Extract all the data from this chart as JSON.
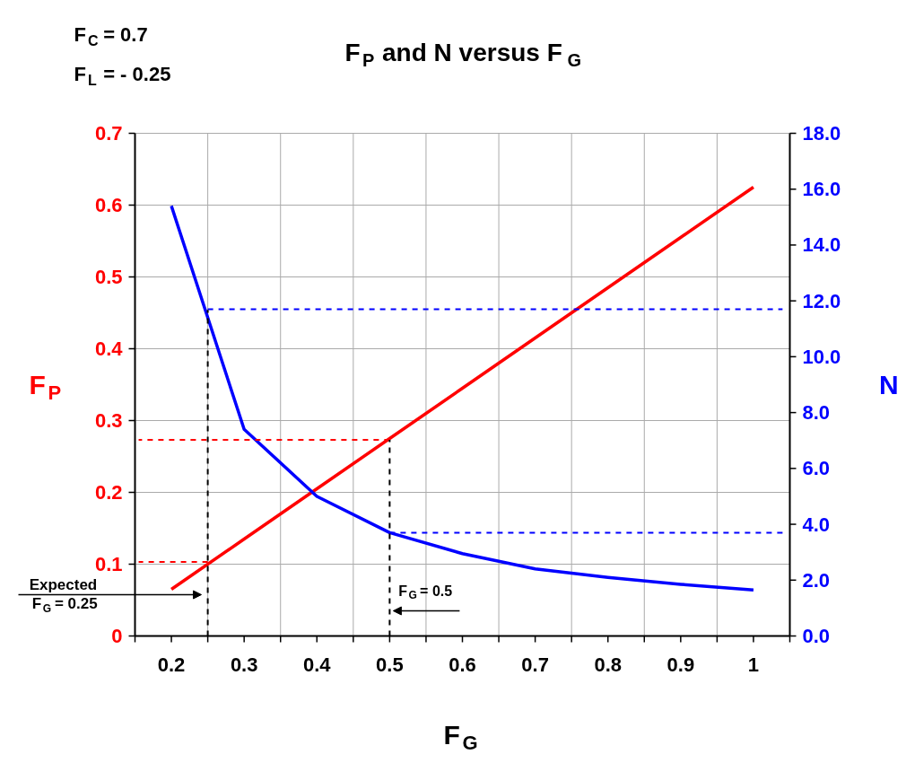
{
  "chart_data": {
    "type": "line",
    "title": "F$_{P}$ and N versus F$_{G}$",
    "xlabel": "F$_{G}$",
    "ylabel": "F$_{P}$",
    "y2label": "N",
    "x": [
      0.2,
      0.3,
      0.4,
      0.5,
      0.6,
      0.7,
      0.8,
      0.9,
      1
    ],
    "series": [
      {
        "color": "#ff0000",
        "values": [
          0.065,
          0.135,
          0.205,
          0.275,
          0.345,
          0.415,
          0.485,
          0.555,
          0.625
        ]
      },
      {
        "color": "#0000ff",
        "axis": "y2",
        "values": [
          15.4,
          7.4,
          5.0,
          3.7,
          2.95,
          2.4,
          2.1,
          1.85,
          1.65
        ]
      },
      {
        "color": "#0000ff",
        "axis": "y2",
        "line_style": "dashed",
        "x": [
          0.25,
          1.04
        ],
        "values": [
          11.7,
          11.7
        ]
      },
      {
        "color": "#0000ff",
        "axis": "y2",
        "line_style": "dashed",
        "x": [
          0.5,
          1.04
        ],
        "values": [
          3.7,
          3.7
        ]
      },
      {
        "color": "#ff0000",
        "line_style": "dashed",
        "x": [
          0.5,
          0.155
        ],
        "values": [
          0.273,
          0.273
        ]
      },
      {
        "color": "#ff0000",
        "line_style": "dashed",
        "x": [
          0.25,
          0.155
        ],
        "values": [
          0.103,
          0.103
        ]
      },
      {
        "color": "#000000",
        "line_style": "dashed",
        "x": [
          0.25,
          0.25
        ],
        "values": [
          0,
          0.454
        ]
      },
      {
        "color": "#000000",
        "line_style": "dashed",
        "x": [
          0.5,
          0.5
        ],
        "values": [
          0,
          0.273
        ]
      }
    ],
    "xlim": [
      0.15,
      1.05
    ],
    "xticks": [
      0.2,
      0.3,
      0.4,
      0.5,
      0.6,
      0.7,
      0.8,
      0.9,
      1,
      {
        "value": 0.15,
        "label": null
      },
      {
        "value": 0.25,
        "label": null
      },
      {
        "value": 0.35,
        "label": null
      },
      {
        "value": 0.45,
        "label": null
      },
      {
        "value": 0.55,
        "label": null
      },
      {
        "value": 0.65,
        "label": null
      },
      {
        "value": 0.75,
        "label": null
      },
      {
        "value": 0.85,
        "label": null
      },
      {
        "value": 0.95,
        "label": null
      },
      {
        "value": 1.05,
        "label": null
      }
    ],
    "ylim": [
      0,
      0.7
    ],
    "yticks": [
      0,
      0.1,
      0.2,
      0.3,
      0.4,
      0.5,
      0.6,
      0.7
    ],
    "y2lim": [
      0,
      18
    ],
    "y2ticks": [
      {
        "value": 0,
        "label": "0.0"
      },
      {
        "value": 2,
        "label": "2.0"
      },
      {
        "value": 4,
        "label": "4.0"
      },
      {
        "value": 6,
        "label": "6.0"
      },
      {
        "value": 8,
        "label": "8.0"
      },
      {
        "value": 10,
        "label": "10.0"
      },
      {
        "value": 12,
        "label": "12.0"
      },
      {
        "value": 14,
        "label": "14.0"
      },
      {
        "value": 16,
        "label": "16.0"
      },
      {
        "value": 18,
        "label": "18.0"
      }
    ],
    "grid": true,
    "line_style": "solid",
    "marker": "none",
    "annotations": [
      "F$_{C}$ =   0.7",
      "F$_{L}$ = - 0.25",
      "Expected\nF$_{G}$ = 0.25",
      {
        "text": "F$_{G}$ = 0.5",
        "x": 0.5,
        "y": 0.035
      }
    ]
  }
}
